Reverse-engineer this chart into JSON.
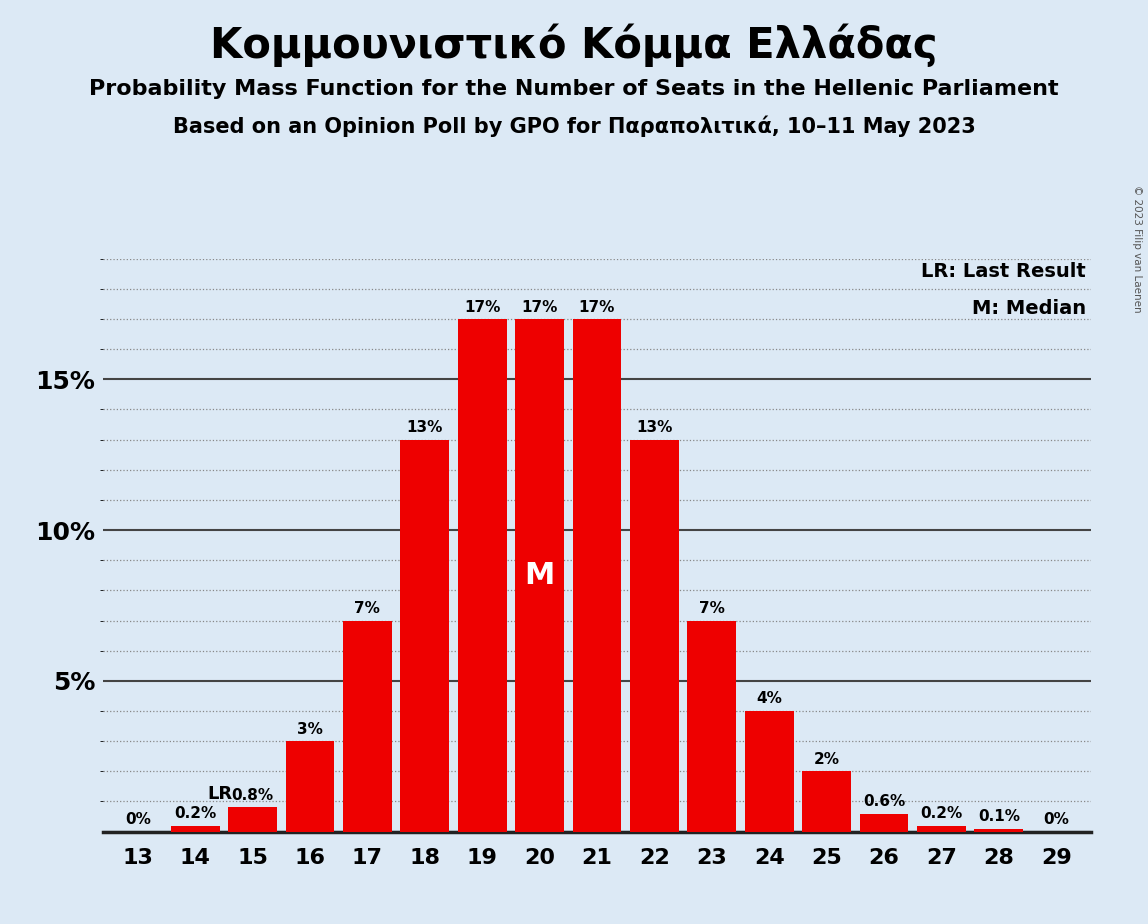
{
  "title": "Κομμουνιστικό Κόμμα Ελλάδας",
  "subtitle1": "Probability Mass Function for the Number of Seats in the Hellenic Parliament",
  "subtitle2": "Based on an Opinion Poll by GPO for Παραπολιτικά, 10–11 May 2023",
  "copyright": "© 2023 Filip van Laenen",
  "legend_lr": "LR: Last Result",
  "legend_m": "M: Median",
  "categories": [
    13,
    14,
    15,
    16,
    17,
    18,
    19,
    20,
    21,
    22,
    23,
    24,
    25,
    26,
    27,
    28,
    29
  ],
  "values": [
    0.0,
    0.2,
    0.8,
    3.0,
    7.0,
    13.0,
    17.0,
    17.0,
    17.0,
    13.0,
    7.0,
    4.0,
    2.0,
    0.6,
    0.2,
    0.1,
    0.0
  ],
  "bar_color": "#ee0000",
  "background_color": "#dce9f5",
  "text_color": "#000000",
  "lr_seat": 15,
  "median_seat": 20,
  "ylim": [
    0,
    19
  ],
  "bar_labels": [
    "0%",
    "0.2%",
    "0.8%",
    "3%",
    "7%",
    "13%",
    "17%",
    "17%",
    "17%",
    "13%",
    "7%",
    "4%",
    "2%",
    "0.6%",
    "0.2%",
    "0.1%",
    "0%"
  ]
}
